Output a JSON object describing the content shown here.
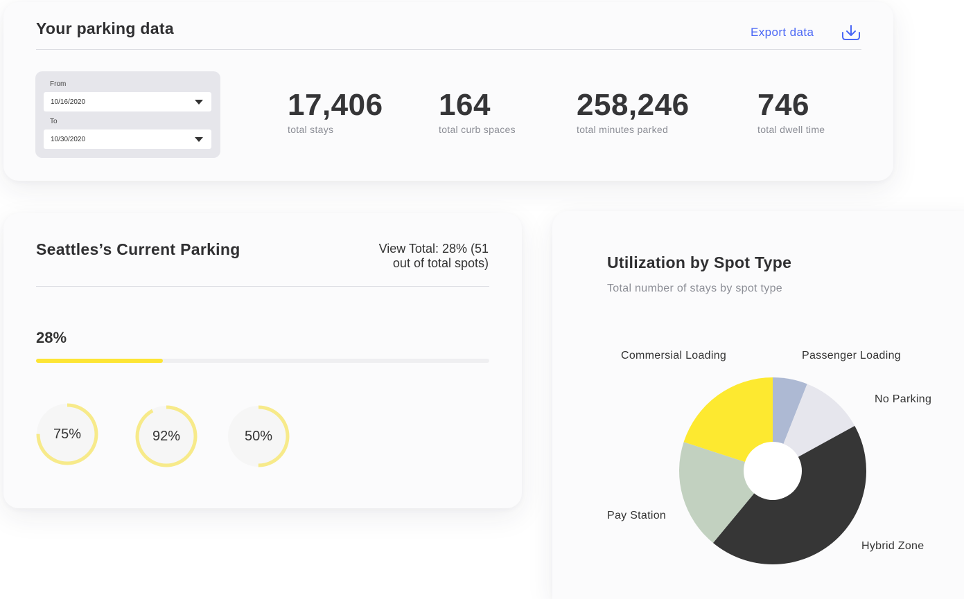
{
  "top": {
    "title": "Your parking data",
    "export_label": "Export data",
    "from_label": "From",
    "from_value": "10/16/2020",
    "to_label": "To",
    "to_value": "10/30/2020",
    "stats": [
      {
        "value": "17,406",
        "label": "total stays"
      },
      {
        "value": "164",
        "label": "total curb spaces"
      },
      {
        "value": "258,246",
        "label": "total minutes parked"
      },
      {
        "value": "746",
        "label": "total dwell time"
      }
    ]
  },
  "parking": {
    "title": "Seattles’s Current Parking",
    "view_total_line1": "View Total: 28% (51",
    "view_total_line2": "out of total spots)",
    "percent_text": "28%",
    "progress": 0.28,
    "rings": [
      {
        "label": "75%",
        "value": 0.75
      },
      {
        "label": "92%",
        "value": 0.92
      },
      {
        "label": "50%",
        "value": 0.5
      }
    ]
  },
  "utilization": {
    "title": "Utilization by Spot Type",
    "subtitle": "Total number of stays by spot type"
  },
  "colors": {
    "accent": "#4a67f5",
    "yellow": "#fde535",
    "ring_yellow": "#f7ea8a",
    "dark": "#353537"
  },
  "chart_data": {
    "type": "pie",
    "title": "Utilization by Spot Type",
    "subtitle": "Total number of stays by spot type",
    "donut": true,
    "slices": [
      {
        "label": "Passenger Loading",
        "value": 6,
        "color": "#adb9d3"
      },
      {
        "label": "No Parking",
        "value": 11,
        "color": "#e6e6ed"
      },
      {
        "label": "Hybrid Zone",
        "value": 44,
        "color": "#363636"
      },
      {
        "label": "Pay Station",
        "value": 19,
        "color": "#c2d1c0"
      },
      {
        "label": "Commersial Loading",
        "value": 20,
        "color": "#fde930"
      }
    ]
  }
}
